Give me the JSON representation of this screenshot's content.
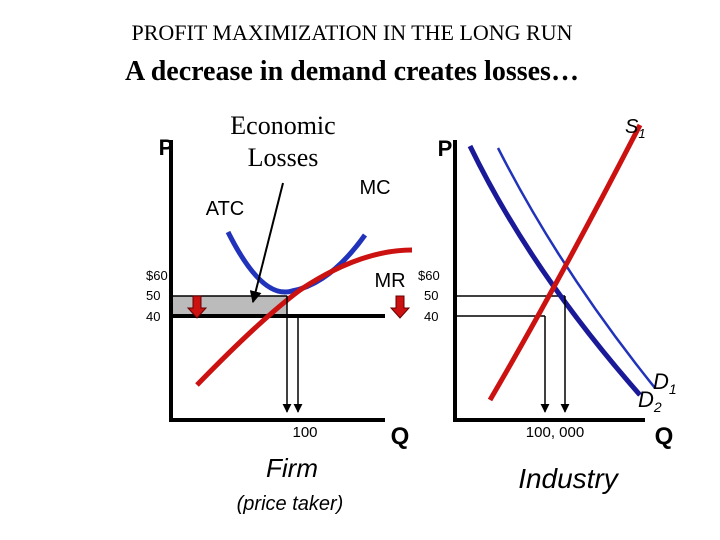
{
  "header": {
    "title": "PROFIT MAXIMIZATION IN THE LONG RUN",
    "subtitle": "A decrease in demand creates losses…"
  },
  "firm": {
    "y_axis": "P",
    "x_axis": "Q",
    "losses_label": [
      "Economic",
      "Losses"
    ],
    "atc": "ATC",
    "mc": "MC",
    "mr": "MR",
    "prices": [
      "$60",
      "50",
      "40"
    ],
    "quantity": "100",
    "name": "Firm",
    "note": "(price taker)"
  },
  "industry": {
    "y_axis": "P",
    "x_axis": "Q",
    "supply": {
      "letter": "S",
      "sub": "1"
    },
    "demand": [
      {
        "letter": "D",
        "sub": "1"
      },
      {
        "letter": "D",
        "sub": "2"
      }
    ],
    "prices": [
      "$60",
      "50",
      "40"
    ],
    "quantity": "100, 000",
    "name": "Industry"
  }
}
